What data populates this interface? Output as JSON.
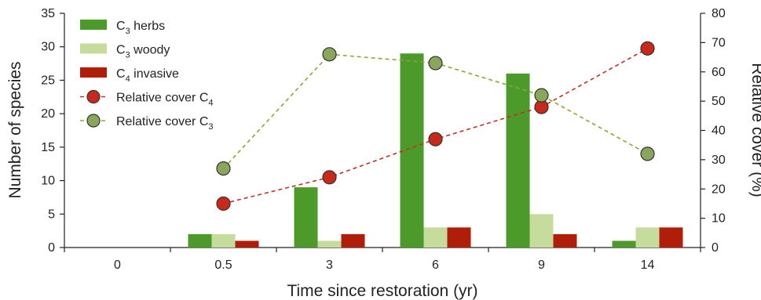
{
  "chart_data": {
    "type": "bar",
    "categories": [
      "0",
      "0.5",
      "3",
      "6",
      "9",
      "14"
    ],
    "xlabel": "Time since restoration (yr)",
    "ylabel_left": "Number of species",
    "ylabel_right": "Relative cover (%)",
    "ylim_left": [
      0,
      35
    ],
    "yticks_left": [
      0,
      5,
      10,
      15,
      20,
      25,
      30,
      35
    ],
    "ylim_right": [
      0,
      80
    ],
    "yticks_right": [
      0,
      10,
      20,
      30,
      40,
      50,
      60,
      70,
      80
    ],
    "grid": false,
    "legend_position": "top-left",
    "bar_series": [
      {
        "legend_main": "C",
        "legend_sub": "3",
        "legend_rest": " herbs",
        "color": "#4c9a2a",
        "values": [
          0,
          2,
          9,
          29,
          26,
          1
        ]
      },
      {
        "legend_main": "C",
        "legend_sub": "3",
        "legend_rest": " woody",
        "color": "#c6dc9c",
        "values": [
          0,
          2,
          1,
          3,
          5,
          3
        ]
      },
      {
        "legend_main": "C",
        "legend_sub": "4",
        "legend_rest": " invasive",
        "color": "#b01e0a",
        "values": [
          0,
          1,
          2,
          3,
          2,
          3
        ]
      }
    ],
    "line_series": [
      {
        "legend_main": "Relative cover C",
        "legend_sub": "4",
        "color": "#c8291a",
        "marker_fill": "#c8291a",
        "line_color": "#c0302a",
        "style": "dashed",
        "axis": "right",
        "values": [
          null,
          15,
          24,
          37,
          48,
          68
        ]
      },
      {
        "legend_main": "Relative cover C",
        "legend_sub": "3",
        "color": "#8aa65a",
        "marker_fill": "#8aa65a",
        "line_color": "#8aa832",
        "style": "dashed",
        "axis": "right",
        "values": [
          null,
          27,
          66,
          63,
          52,
          32
        ]
      }
    ]
  }
}
